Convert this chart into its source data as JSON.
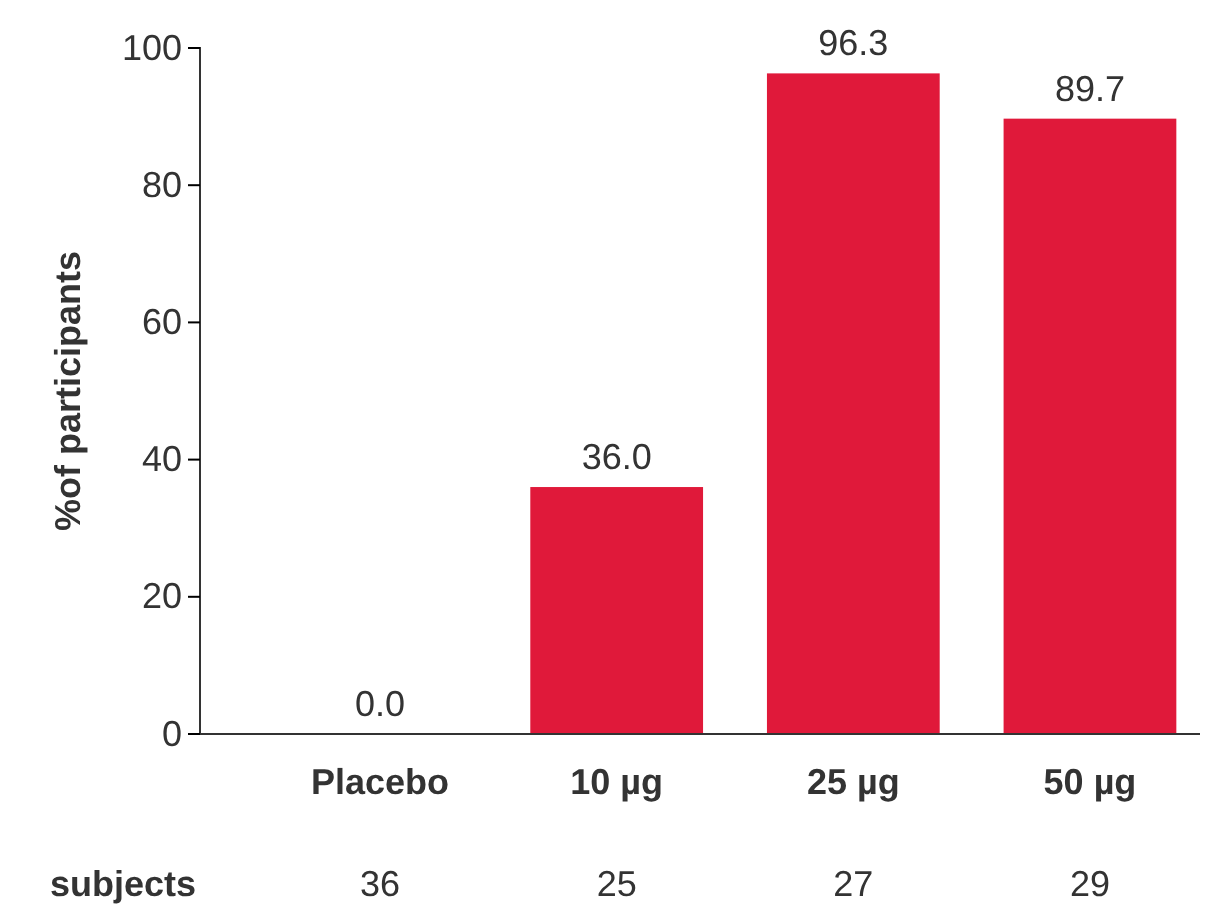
{
  "chart_data": {
    "type": "bar",
    "ylabel": "%of participants",
    "categories": [
      "Placebo",
      "10 µg",
      "25 µg",
      "50 µg"
    ],
    "values": [
      0.0,
      36.0,
      96.3,
      89.7
    ],
    "value_labels": [
      "0.0",
      "36.0",
      "96.3",
      "89.7"
    ],
    "color": "#e0193a",
    "ylim": [
      0,
      100
    ],
    "yticks": [
      0,
      20,
      40,
      60,
      80,
      100
    ],
    "grid": false,
    "annotations": [
      "subjects",
      "36",
      "25",
      "27",
      "29"
    ]
  }
}
